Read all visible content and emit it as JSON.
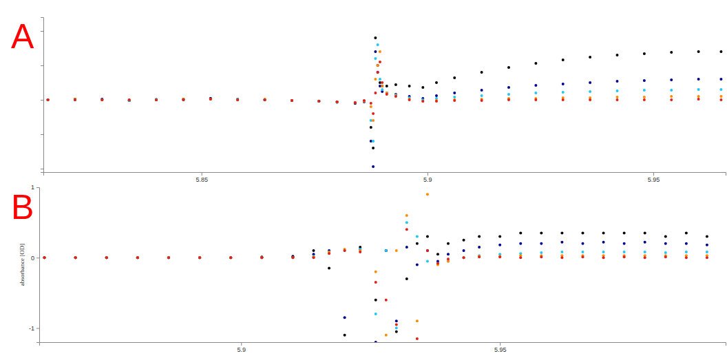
{
  "chart_data": [
    {
      "type": "scatter",
      "title": "A",
      "marker": "circle",
      "tick_labels": "x",
      "xlim": [
        5.815,
        5.966
      ],
      "xticks": [
        5.85,
        5.9,
        5.95
      ],
      "ylim": [
        -1.05,
        1.2
      ],
      "yticks": [
        -1,
        -0.5,
        0,
        0.5,
        1
      ],
      "x": [
        5.816,
        5.822,
        5.828,
        5.834,
        5.84,
        5.846,
        5.852,
        5.858,
        5.864,
        5.87,
        5.876,
        5.88,
        5.884,
        5.886,
        5.8875,
        5.888,
        5.8885,
        5.889,
        5.8895,
        5.89,
        5.891,
        5.893,
        5.896,
        5.899,
        5.902,
        5.906,
        5.912,
        5.918,
        5.924,
        5.93,
        5.936,
        5.942,
        5.948,
        5.954,
        5.96,
        5.965
      ],
      "series": [
        {
          "color": "#000000",
          "values": [
            0,
            0.01,
            0,
            -0.01,
            0,
            0.01,
            0.02,
            0.01,
            0,
            -0.01,
            -0.02,
            -0.03,
            -0.05,
            -0.02,
            -0.4,
            -0.7,
            0.9,
            0.5,
            0.25,
            0.2,
            0.2,
            0.22,
            0.2,
            0.18,
            0.25,
            0.32,
            0.4,
            0.47,
            0.53,
            0.58,
            0.62,
            0.65,
            0.67,
            0.69,
            0.7,
            0.7
          ]
        },
        {
          "color": "#00008f",
          "values": [
            0,
            0,
            0.01,
            -0.01,
            0,
            0,
            0.02,
            0,
            0,
            -0.01,
            -0.02,
            -0.03,
            -0.05,
            -0.03,
            -0.6,
            -0.97,
            0.7,
            0.4,
            0.2,
            0.12,
            0.1,
            0.08,
            0.05,
            0.02,
            0.06,
            0.1,
            0.14,
            0.18,
            0.21,
            0.23,
            0.25,
            0.27,
            0.28,
            0.29,
            0.3,
            0.3
          ]
        },
        {
          "color": "#20c8f0",
          "values": [
            0,
            0,
            0,
            -0.01,
            0.01,
            0,
            0.01,
            0.01,
            0,
            -0.01,
            -0.02,
            -0.04,
            -0.04,
            -0.02,
            -0.3,
            -0.6,
            0.6,
            0.8,
            0.3,
            0.15,
            0.1,
            0.07,
            0.03,
            0,
            0.02,
            0.04,
            0.06,
            0.08,
            0.1,
            0.11,
            0.12,
            0.13,
            0.14,
            0.14,
            0.15,
            0.15
          ]
        },
        {
          "color": "#ff8c00",
          "values": [
            0,
            0.01,
            0,
            0,
            0,
            0.01,
            0.01,
            0,
            0.01,
            -0.01,
            -0.02,
            -0.03,
            -0.04,
            -0.02,
            -0.1,
            -0.3,
            0.3,
            0.5,
            0.7,
            0.2,
            0.1,
            0.06,
            0.01,
            -0.02,
            -0.01,
            0,
            0.01,
            0.02,
            0.02,
            0.03,
            0.03,
            0.04,
            0.04,
            0.05,
            0.05,
            0.05
          ]
        },
        {
          "color": "#e0201c",
          "values": [
            0,
            0,
            0,
            0,
            0,
            0,
            0.01,
            0,
            0,
            -0.01,
            -0.02,
            -0.03,
            -0.04,
            -0.01,
            -0.05,
            -0.2,
            0.1,
            0.4,
            0.55,
            0.25,
            0.08,
            0.05,
            0,
            -0.02,
            -0.02,
            -0.01,
            -0.01,
            0,
            0,
            0,
            0,
            0,
            0,
            0,
            0.01,
            0
          ]
        }
      ]
    },
    {
      "type": "scatter",
      "title": "B",
      "marker": "circle",
      "y_label": "absorbance [OD]",
      "xlim": [
        5.861,
        5.9936
      ],
      "xticks": [
        5.9,
        5.95
      ],
      "ylim": [
        -1.2,
        1.0
      ],
      "yticks": [
        -1,
        0,
        1
      ],
      "x": [
        5.862,
        5.868,
        5.874,
        5.88,
        5.886,
        5.892,
        5.898,
        5.904,
        5.91,
        5.914,
        5.917,
        5.92,
        5.923,
        5.926,
        5.928,
        5.93,
        5.932,
        5.934,
        5.936,
        5.938,
        5.94,
        5.943,
        5.946,
        5.95,
        5.954,
        5.958,
        5.962,
        5.966,
        5.97,
        5.974,
        5.978,
        5.982,
        5.986,
        5.99
      ],
      "series": [
        {
          "color": "#000000",
          "values": [
            0,
            0,
            0,
            0,
            0,
            0,
            0,
            0.01,
            0.02,
            0.1,
            -0.15,
            -1.1,
            0.15,
            -0.6,
            0.1,
            -1.05,
            -0.3,
            0.2,
            0.3,
            0.05,
            0.2,
            0.25,
            0.3,
            0.3,
            0.35,
            0.35,
            0.35,
            0.35,
            0.35,
            0.35,
            0.35,
            0.3,
            0.35,
            0.3
          ]
        },
        {
          "color": "#00008f",
          "values": [
            0,
            0,
            0,
            0,
            0,
            0,
            0,
            0,
            0.01,
            0.05,
            0.1,
            -0.85,
            0.12,
            -1.2,
            0.1,
            -0.9,
            0.15,
            -0.1,
            0.1,
            -0.05,
            0.05,
            0.1,
            0.15,
            0.18,
            0.2,
            0.2,
            0.22,
            0.2,
            0.22,
            0.2,
            0.22,
            0.2,
            0.2,
            0.18
          ]
        },
        {
          "color": "#20c8f0",
          "values": [
            0,
            0,
            0,
            0,
            0,
            0,
            0,
            0,
            0,
            0.02,
            0.08,
            0.1,
            0.12,
            -0.8,
            0.1,
            -1.0,
            0.5,
            0.3,
            -0.05,
            -0.08,
            -0.05,
            0,
            0.03,
            0.05,
            0.06,
            0.07,
            0.08,
            0.08,
            0.08,
            0.08,
            0.08,
            0.07,
            0.08,
            0.08
          ]
        },
        {
          "color": "#ff8c00",
          "values": [
            0,
            0,
            0,
            0,
            0,
            0,
            0,
            0,
            0,
            0.01,
            0.08,
            0.12,
            0.1,
            -0.2,
            -1.1,
            0.1,
            0.6,
            -0.9,
            0.9,
            -0.1,
            -0.05,
            0,
            0.02,
            0.02,
            0.03,
            0.03,
            0.03,
            0.03,
            0.03,
            0.03,
            0.03,
            0.03,
            0.03,
            0.03
          ]
        },
        {
          "color": "#e0201c",
          "values": [
            0,
            0,
            0,
            0,
            0,
            0,
            0,
            0,
            0,
            0,
            0.06,
            0.1,
            0.08,
            -0.35,
            -0.6,
            -0.95,
            0.4,
            -1.15,
            0.1,
            -0.08,
            -0.02,
            0,
            0.01,
            0.01,
            0,
            0.01,
            0,
            0.01,
            0,
            0.01,
            0,
            0.01,
            0,
            0
          ]
        }
      ]
    }
  ]
}
